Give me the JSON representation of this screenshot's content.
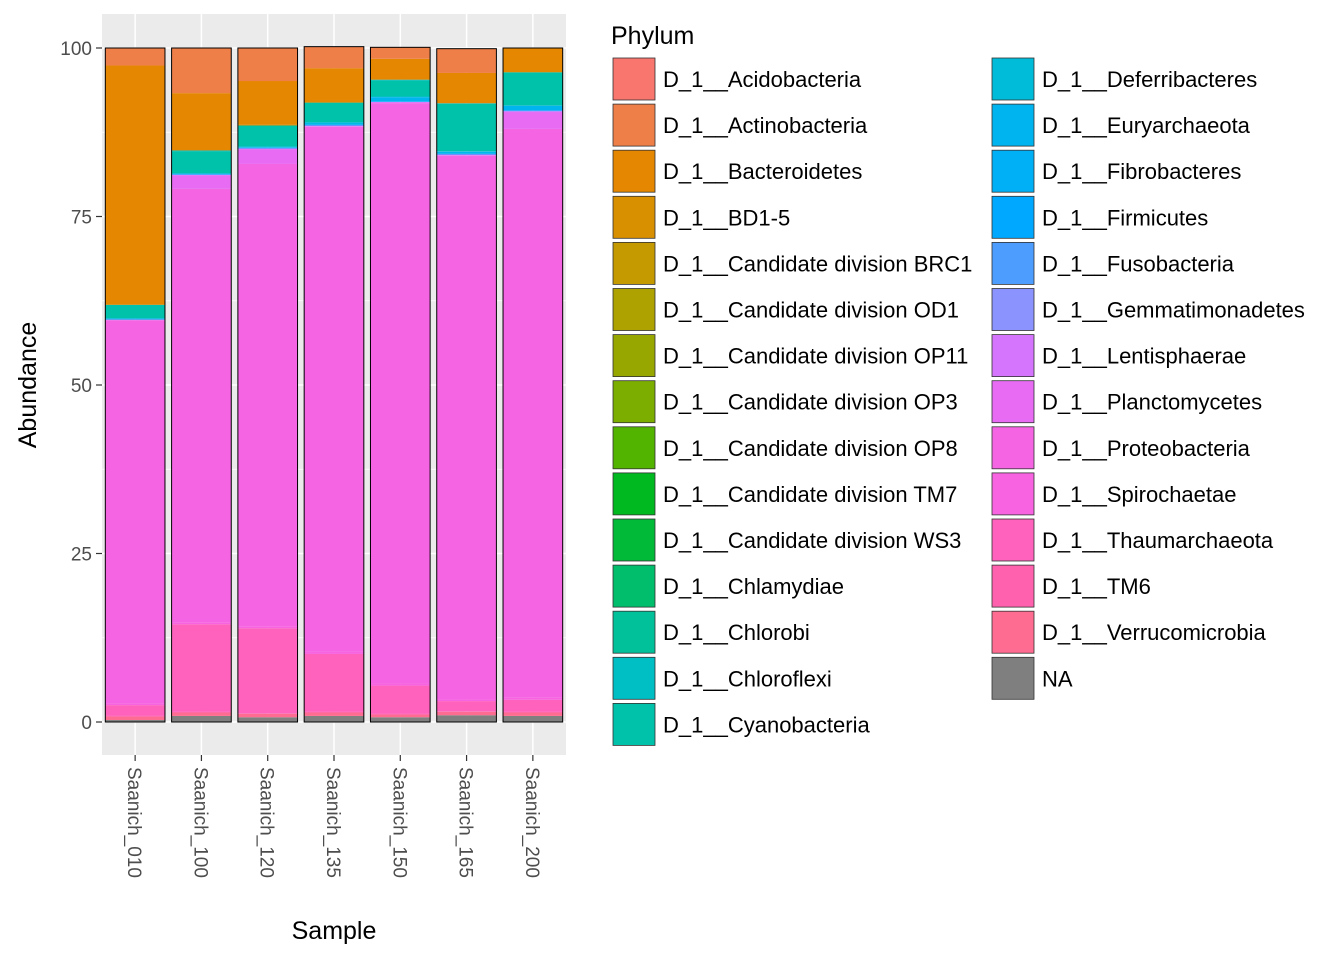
{
  "chart_data": {
    "type": "bar",
    "stacked": true,
    "xlabel": "Sample",
    "ylabel": "Abundance",
    "ylim": [
      0,
      105
    ],
    "yticks": [
      0,
      25,
      50,
      75,
      100
    ],
    "grid": true,
    "legend_position": "right",
    "legend_title": "Phylum",
    "categories": [
      "Saanich_010",
      "Saanich_100",
      "Saanich_120",
      "Saanich_135",
      "Saanich_150",
      "Saanich_165",
      "Saanich_200"
    ],
    "series": [
      {
        "name": "NA",
        "color": "#7F7F7F",
        "values": [
          0.3,
          0.9,
          0.7,
          0.9,
          0.7,
          1.0,
          0.9
        ]
      },
      {
        "name": "D_1__Verrucomicrobia",
        "color": "#FF6C91",
        "values": [
          0.5,
          0.5,
          0.5,
          0.5,
          0.4,
          0.5,
          0.5
        ]
      },
      {
        "name": "D_1__TM6",
        "color": "#FF61AE",
        "values": [
          0.1,
          0.1,
          0.1,
          0.1,
          0.1,
          0.1,
          0.1
        ]
      },
      {
        "name": "D_1__Thaumarchaeota",
        "color": "#FF62BC",
        "values": [
          1.6,
          13.0,
          12.6,
          8.6,
          4.2,
          1.5,
          1.8
        ]
      },
      {
        "name": "D_1__Spirochaetae",
        "color": "#F763E0",
        "values": [
          0.3,
          0.3,
          0.3,
          0.3,
          0.3,
          0.3,
          0.3
        ]
      },
      {
        "name": "D_1__Proteobacteria",
        "color": "#F564E3",
        "values": [
          56.8,
          64.3,
          68.6,
          77.9,
          86.1,
          80.6,
          84.4
        ]
      },
      {
        "name": "D_1__Planctomycetes",
        "color": "#E76BF3",
        "values": [
          0.1,
          2.0,
          2.2,
          0.1,
          0.1,
          0.1,
          2.5
        ]
      },
      {
        "name": "D_1__Lentisphaerae",
        "color": "#D575FE",
        "values": [
          0.0,
          0.1,
          0.1,
          0.1,
          0.1,
          0.1,
          0.1
        ]
      },
      {
        "name": "D_1__Gemmatimonadetes",
        "color": "#8B93FF",
        "values": [
          0.0,
          0.0,
          0.0,
          0.0,
          0.0,
          0.0,
          0.1
        ]
      },
      {
        "name": "D_1__Fusobacteria",
        "color": "#4D9DFF",
        "values": [
          0.0,
          0.0,
          0.0,
          0.0,
          0.0,
          0.0,
          0.0
        ]
      },
      {
        "name": "D_1__Firmicutes",
        "color": "#00A9FF",
        "values": [
          0.0,
          0.1,
          0.1,
          0.1,
          0.1,
          0.1,
          0.1
        ]
      },
      {
        "name": "D_1__Fibrobacteres",
        "color": "#00B0F6",
        "values": [
          0.0,
          0.0,
          0.0,
          0.0,
          0.0,
          0.0,
          0.0
        ]
      },
      {
        "name": "D_1__Euryarchaeota",
        "color": "#00B4EF",
        "values": [
          0.2,
          0.1,
          0.1,
          0.2,
          0.6,
          0.3,
          0.6
        ]
      },
      {
        "name": "D_1__Deferribacteres",
        "color": "#00BCD8",
        "values": [
          0.0,
          0.0,
          0.1,
          0.2,
          0.1,
          0.1,
          0.1
        ]
      },
      {
        "name": "D_1__Cyanobacteria",
        "color": "#00C1AA",
        "values": [
          2.0,
          3.3,
          3.1,
          2.9,
          2.4,
          7.0,
          4.9
        ]
      },
      {
        "name": "D_1__Chloroflexi",
        "color": "#00BFC4",
        "values": [
          0.0,
          0.1,
          0.0,
          0.0,
          0.1,
          0.1,
          0.0
        ]
      },
      {
        "name": "D_1__Chlorobi",
        "color": "#00C19A",
        "values": [
          0.0,
          0.0,
          0.0,
          0.0,
          0.0,
          0.0,
          0.0
        ]
      },
      {
        "name": "D_1__Chlamydiae",
        "color": "#00BE6C",
        "values": [
          0.0,
          0.0,
          0.0,
          0.0,
          0.0,
          0.0,
          0.0
        ]
      },
      {
        "name": "D_1__Candidate division WS3",
        "color": "#00BA38",
        "values": [
          0.0,
          0.0,
          0.0,
          0.0,
          0.0,
          0.0,
          0.0
        ]
      },
      {
        "name": "D_1__Candidate division TM7",
        "color": "#00B81F",
        "values": [
          0.0,
          0.0,
          0.0,
          0.0,
          0.0,
          0.0,
          0.0
        ]
      },
      {
        "name": "D_1__Candidate division OP8",
        "color": "#53B400",
        "values": [
          0.0,
          0.0,
          0.0,
          0.0,
          0.0,
          0.0,
          0.0
        ]
      },
      {
        "name": "D_1__Candidate division OP3",
        "color": "#7CAE00",
        "values": [
          0.0,
          0.0,
          0.0,
          0.0,
          0.0,
          0.0,
          0.0
        ]
      },
      {
        "name": "D_1__Candidate division OP11",
        "color": "#98A600",
        "values": [
          0.0,
          0.0,
          0.0,
          0.0,
          0.0,
          0.0,
          0.0
        ]
      },
      {
        "name": "D_1__Candidate division OD1",
        "color": "#AEA200",
        "values": [
          0.0,
          0.0,
          0.0,
          0.0,
          0.0,
          0.0,
          0.0
        ]
      },
      {
        "name": "D_1__Candidate division BRC1",
        "color": "#C49A00",
        "values": [
          0.0,
          0.0,
          0.0,
          0.0,
          0.0,
          0.0,
          0.0
        ]
      },
      {
        "name": "D_1__BD1-5",
        "color": "#D89000",
        "values": [
          0.0,
          0.0,
          0.1,
          0.0,
          0.0,
          0.0,
          0.0
        ]
      },
      {
        "name": "D_1__Bacteroidetes",
        "color": "#E58700",
        "values": [
          35.5,
          8.5,
          6.5,
          5.1,
          3.1,
          4.5,
          3.6
        ]
      },
      {
        "name": "D_1__Actinobacteria",
        "color": "#EF7F49",
        "values": [
          2.6,
          6.7,
          4.9,
          3.2,
          1.7,
          3.6,
          0.0
        ]
      },
      {
        "name": "D_1__Acidobacteria",
        "color": "#F8766D",
        "values": [
          0.0,
          0.0,
          0.0,
          0.0,
          0.0,
          0.0,
          0.0
        ]
      }
    ]
  }
}
